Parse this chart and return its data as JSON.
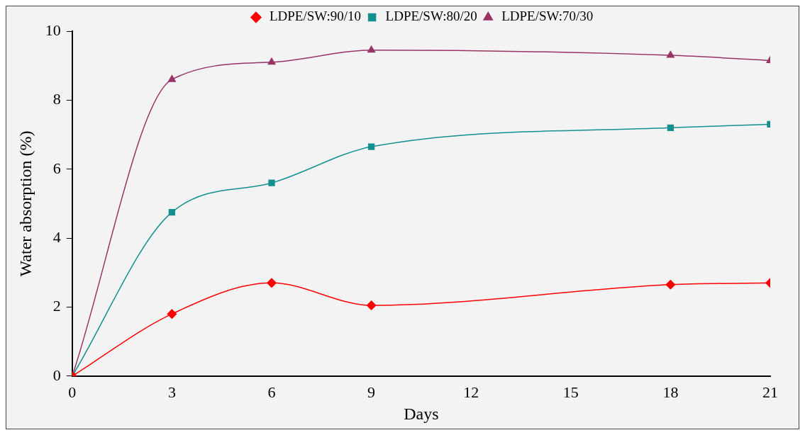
{
  "chart_data": {
    "type": "line",
    "xlabel": "Days",
    "ylabel": "Water absorption (%)",
    "x": [
      0,
      3,
      6,
      9,
      18,
      21
    ],
    "series": [
      {
        "name": "LDPE/SW:90/10",
        "color": "#ff0000",
        "marker": "diamond",
        "values": [
          0,
          1.8,
          2.7,
          2.05,
          2.65,
          2.7
        ]
      },
      {
        "name": "LDPE/SW:80/20",
        "color": "#138f8f",
        "marker": "square",
        "values": [
          0,
          4.75,
          5.6,
          6.65,
          7.2,
          7.3
        ]
      },
      {
        "name": "LDPE/SW:70/30",
        "color": "#993366",
        "marker": "triangle",
        "values": [
          0,
          8.6,
          9.1,
          9.45,
          9.3,
          9.15
        ]
      }
    ],
    "xlim": [
      0,
      21
    ],
    "xticks": [
      0,
      3,
      6,
      9,
      12,
      15,
      18,
      21
    ],
    "ylim": [
      0,
      10
    ],
    "yticks": [
      0,
      2,
      4,
      6,
      8,
      10
    ],
    "grid": false,
    "legend": "top right"
  }
}
